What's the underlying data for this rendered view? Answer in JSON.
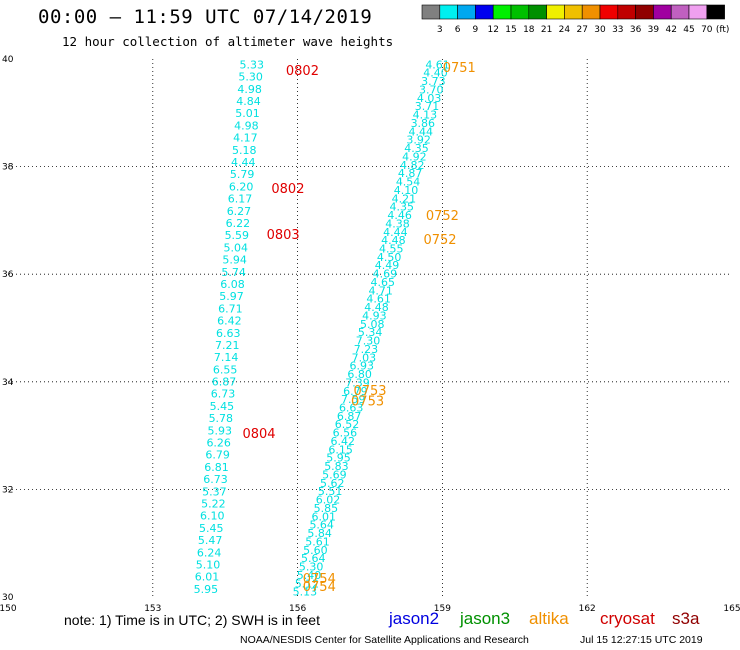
{
  "header": {
    "title": "00:00 – 11:59 UTC 07/14/2019",
    "subtitle": "12 hour collection of altimeter wave heights"
  },
  "legend": {
    "unit": "(ft)",
    "bins": [
      {
        "label": "3",
        "color": "#808080"
      },
      {
        "label": "6",
        "color": "#00f0f0"
      },
      {
        "label": "9",
        "color": "#00a8f0"
      },
      {
        "label": "12",
        "color": "#0000f0"
      },
      {
        "label": "15",
        "color": "#00f000"
      },
      {
        "label": "18",
        "color": "#00c000"
      },
      {
        "label": "21",
        "color": "#009000"
      },
      {
        "label": "24",
        "color": "#f0f000"
      },
      {
        "label": "27",
        "color": "#f0c000"
      },
      {
        "label": "30",
        "color": "#f09000"
      },
      {
        "label": "33",
        "color": "#f00000"
      },
      {
        "label": "36",
        "color": "#c00000"
      },
      {
        "label": "39",
        "color": "#900000"
      },
      {
        "label": "42",
        "color": "#a000a0"
      },
      {
        "label": "45",
        "color": "#c060c0"
      },
      {
        "label": "70",
        "color": "#f0a0f0"
      },
      {
        "label": "",
        "color": "#000000"
      }
    ]
  },
  "footer": {
    "note": "note: 1) Time is in UTC; 2) SWH is in feet",
    "credit": "NOAA/NESDIS Center for Satellite Applications and Research",
    "timestamp": "Jul 15 12:27:15 UTC 2019",
    "satellites": [
      {
        "name": "jason2",
        "color": "#0000e0"
      },
      {
        "name": "jason3",
        "color": "#009000"
      },
      {
        "name": "altika",
        "color": "#f09000"
      },
      {
        "name": "cryosat",
        "color": "#d00000"
      },
      {
        "name": "s3a",
        "color": "#900000"
      }
    ]
  },
  "chart_data": {
    "type": "scatter",
    "xlim": [
      150,
      165
    ],
    "ylim": [
      30,
      40
    ],
    "xticks": [
      "150",
      "153",
      "156",
      "159",
      "162",
      "165"
    ],
    "yticks": [
      "30",
      "32",
      "34",
      "36",
      "38",
      "40"
    ],
    "grid": true,
    "value_color": "#00e0e0",
    "series": [
      {
        "name": "cryosat",
        "lon_north": 155.05,
        "lon_south": 154.1,
        "lat_north": 39.9,
        "lat_south": 30.15,
        "values": [
          "5.33",
          "5.30",
          "4.98",
          "4.84",
          "5.01",
          "4.98",
          "4.17",
          "5.18",
          "4.44",
          "5.79",
          "6.20",
          "6.17",
          "6.27",
          "6.22",
          "5.59",
          "5.04",
          "5.94",
          "5.74",
          "6.08",
          "5.97",
          "6.71",
          "6.42",
          "6.63",
          "7.21",
          "7.14",
          "6.55",
          "6.87",
          "6.73",
          "5.45",
          "5.78",
          "5.93",
          "6.26",
          "6.79",
          "6.81",
          "6.73",
          "5.37",
          "5.22",
          "6.10",
          "5.45",
          "5.47",
          "6.24",
          "5.10",
          "6.01",
          "5.95"
        ],
        "times": [
          {
            "label": "0802",
            "lon": 156.1,
            "lat": 39.8,
            "color": "#e00000"
          },
          {
            "label": "0802",
            "lon": 155.8,
            "lat": 37.6,
            "color": "#e00000"
          },
          {
            "label": "0803",
            "lon": 155.7,
            "lat": 36.75,
            "color": "#e00000"
          },
          {
            "label": "0804",
            "lon": 155.2,
            "lat": 33.05,
            "color": "#e00000"
          }
        ]
      },
      {
        "name": "altika",
        "lon_north": 158.9,
        "lon_south": 156.15,
        "lat_north": 39.9,
        "lat_south": 30.1,
        "values": [
          "4.61",
          "4.40",
          "3.73",
          "3.70",
          "4.03",
          "3.71",
          "4.13",
          "3.86",
          "4.44",
          "3.92",
          "4.35",
          "4.92",
          "4.82",
          "4.87",
          "4.54",
          "4.10",
          "4.21",
          "4.35",
          "4.46",
          "4.38",
          "4.44",
          "4.48",
          "4.55",
          "4.50",
          "4.49",
          "4.69",
          "4.65",
          "4.71",
          "4.61",
          "4.48",
          "4.93",
          "5.08",
          "5.34",
          "7.30",
          "7.23",
          "7.03",
          "6.93",
          "6.80",
          "7.39",
          "6.79",
          "7.59",
          "6.63",
          "6.87",
          "6.52",
          "6.56",
          "6.42",
          "6.15",
          "5.95",
          "5.83",
          "5.69",
          "5.62",
          "5.51",
          "6.02",
          "5.85",
          "6.01",
          "5.64",
          "5.84",
          "5.61",
          "5.60",
          "5.64",
          "5.30",
          "5.40",
          "5.12",
          "5.13"
        ],
        "times": [
          {
            "label": "0751",
            "lon": 159.35,
            "lat": 39.85,
            "color": "#f09000"
          },
          {
            "label": "0752",
            "lon": 159.0,
            "lat": 37.1,
            "color": "#f09000"
          },
          {
            "label": "0752",
            "lon": 158.95,
            "lat": 36.65,
            "color": "#f09000"
          },
          {
            "label": "0753",
            "lon": 157.5,
            "lat": 33.85,
            "color": "#f09000"
          },
          {
            "label": "0753",
            "lon": 157.45,
            "lat": 33.65,
            "color": "#f09000"
          },
          {
            "label": "0754",
            "lon": 156.45,
            "lat": 30.35,
            "color": "#f09000"
          },
          {
            "label": "0754",
            "lon": 156.45,
            "lat": 30.2,
            "color": "#f09000"
          }
        ]
      }
    ]
  }
}
